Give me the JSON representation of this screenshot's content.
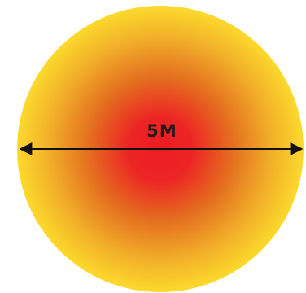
{
  "diagram": {
    "diameter_label": "5M",
    "colors": {
      "center": "#ed1c24",
      "middle": "#e46e1f",
      "edge": "#fcd92c",
      "arrow": "#111111",
      "label": "#2a1a1a"
    }
  }
}
